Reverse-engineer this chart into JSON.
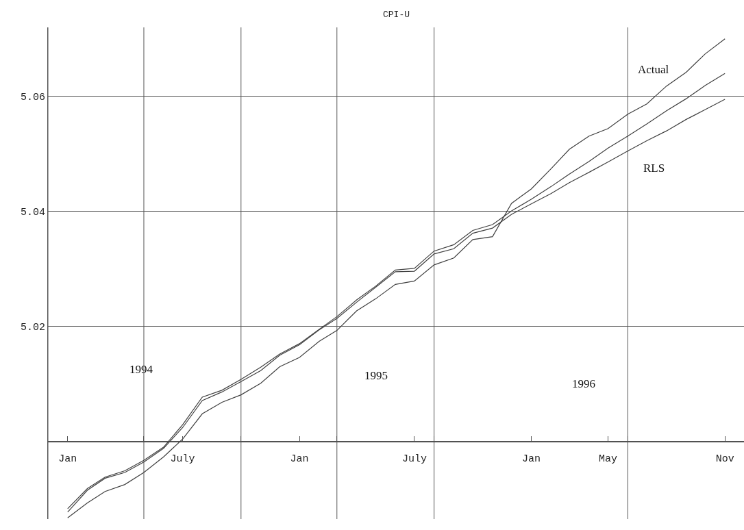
{
  "chart_data": {
    "type": "line",
    "title": "CPI-U",
    "x": [
      "1994-01",
      "1994-02",
      "1994-03",
      "1994-04",
      "1994-05",
      "1994-06",
      "1994-07",
      "1994-08",
      "1994-09",
      "1994-10",
      "1994-11",
      "1994-12",
      "1995-01",
      "1995-02",
      "1995-03",
      "1995-04",
      "1995-05",
      "1995-06",
      "1995-07",
      "1995-08",
      "1995-09",
      "1995-10",
      "1995-11",
      "1995-12",
      "1996-01",
      "1996-02",
      "1996-03",
      "1996-04",
      "1996-05",
      "1996-06",
      "1996-07",
      "1996-08",
      "1996-09",
      "1996-10",
      "1996-11"
    ],
    "series": [
      {
        "name": "Actual",
        "color": "#404040",
        "values": [
          4.9867,
          4.9893,
          4.9913,
          4.9925,
          4.9946,
          4.9973,
          5.0004,
          5.0048,
          5.0068,
          5.0081,
          5.0101,
          5.013,
          5.0146,
          5.0174,
          5.0193,
          5.0227,
          5.0248,
          5.0273,
          5.0279,
          5.0307,
          5.0319,
          5.0351,
          5.0356,
          5.0414,
          5.0439,
          5.0474,
          5.0508,
          5.0531,
          5.0544,
          5.0569,
          5.0587,
          5.0618,
          5.0642,
          5.0674,
          5.07
        ]
      },
      {
        "color": "#404040",
        "values": [
          4.9883,
          4.9918,
          4.9938,
          4.9949,
          4.9967,
          4.999,
          5.0029,
          5.0077,
          5.0089,
          5.0108,
          5.0129,
          5.0152,
          5.017,
          5.0195,
          5.0217,
          5.0246,
          5.027,
          5.0298,
          5.0301,
          5.0331,
          5.0342,
          5.0367,
          5.0377,
          5.0401,
          5.0421,
          5.0443,
          5.0465,
          5.0487,
          5.051,
          5.0531,
          5.0552,
          5.0575,
          5.0596,
          5.0619,
          5.064
        ]
      },
      {
        "name": "RLS",
        "color": "#404040",
        "values": [
          4.9877,
          4.9915,
          4.9936,
          4.9946,
          4.9964,
          4.9988,
          5.0024,
          5.0071,
          5.0086,
          5.0104,
          5.0123,
          5.015,
          5.0168,
          5.0194,
          5.0214,
          5.0242,
          5.0268,
          5.0295,
          5.0296,
          5.0326,
          5.0335,
          5.0362,
          5.0371,
          5.0395,
          5.0413,
          5.0431,
          5.045,
          5.0468,
          5.0486,
          5.0505,
          5.0523,
          5.054,
          5.056,
          5.0577,
          5.0595
        ]
      }
    ],
    "xlim": [
      "1993-12",
      "1996-12"
    ],
    "xticks": [
      {
        "value": "1993-12",
        "label": null
      },
      {
        "value": "1994-01",
        "label": "Jan"
      },
      {
        "value": "1994-05",
        "label": null
      },
      {
        "value": "1994-07",
        "label": "July"
      },
      {
        "value": "1994-10",
        "label": null
      },
      {
        "value": "1995-01",
        "label": "Jan"
      },
      {
        "value": "1995-03",
        "label": null
      },
      {
        "value": "1995-07",
        "label": "July"
      },
      {
        "value": "1995-08",
        "label": null
      },
      {
        "value": "1996-01",
        "label": "Jan"
      },
      {
        "value": "1996-05",
        "label": "May"
      },
      {
        "value": "1996-06",
        "label": null
      },
      {
        "value": "1996-11",
        "label": "Nov"
      }
    ],
    "ylim": [
      4.9865,
      5.072
    ],
    "yticks": [
      {
        "value": 5.0,
        "label": null
      },
      5.02,
      5.04,
      5.06
    ],
    "annotations": [
      "1994",
      "1995",
      "1996"
    ],
    "grid": true,
    "legend": false,
    "marker": "none",
    "line_style": "solid"
  }
}
